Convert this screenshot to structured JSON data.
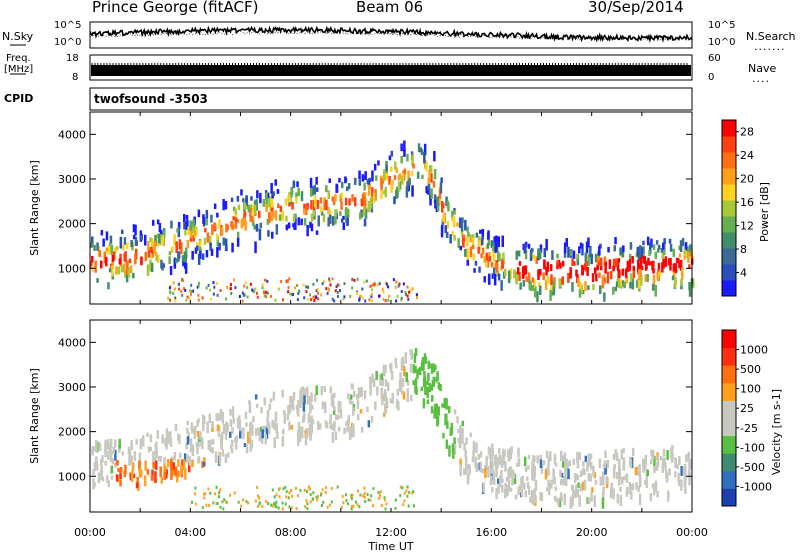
{
  "header": {
    "station": "Prince George (fitACF)",
    "beam": "Beam 06",
    "date": "30/Sep/2014"
  },
  "noise_panel": {
    "left_label": "N.Sky",
    "right_label": "N.Search",
    "right_dots": ".......",
    "left_ticks": [
      "10^5",
      "10^0"
    ],
    "right_ticks": [
      "10^5",
      "10^0"
    ]
  },
  "freq_panel": {
    "left_label_1": "Freq.",
    "left_label_2": "[MHz]",
    "right_label": "Nave",
    "right_dots": "....",
    "left_ticks": [
      "18",
      "8"
    ],
    "right_ticks": [
      "60",
      "0"
    ]
  },
  "cpid": {
    "label": "CPID",
    "value": "twofsound  -3503"
  },
  "chart_data": [
    {
      "type": "heatmap",
      "title": "",
      "xlabel": "",
      "ylabel": "Slant Range [km]",
      "x_range": [
        "00:00",
        "24:00"
      ],
      "ylim": [
        200,
        4500
      ],
      "y_ticks": [
        1000,
        2000,
        3000,
        4000
      ],
      "colorbar": {
        "label": "Power [dB]",
        "ticks": [
          4,
          8,
          12,
          16,
          20,
          24,
          28
        ],
        "range": [
          0,
          30
        ],
        "colors": [
          "#1a1aff",
          "#2a4fbd",
          "#3a6a95",
          "#3f8f6a",
          "#66b050",
          "#a8c838",
          "#ffd21e",
          "#ffa01a",
          "#ff7016",
          "#ff4010",
          "#ff0000"
        ]
      },
      "echo_bands_km": [
        {
          "x": [
            0.0,
            1.0,
            2.0,
            3.0,
            4.0,
            5.0,
            6.0,
            7.0,
            8.0,
            9.0,
            10.0,
            11.0
          ],
          "y": [
            1300,
            1350,
            1400,
            1550,
            1750,
            1950,
            2200,
            2350,
            2450,
            2500,
            2550,
            2600
          ]
        },
        {
          "x": [
            11.0,
            12.0,
            13.0,
            13.7,
            14.2,
            15.0,
            16.0,
            17.0,
            18.0,
            20.0,
            22.0,
            24.0
          ],
          "y": [
            2700,
            3100,
            3450,
            3000,
            2200,
            1600,
            1250,
            1100,
            1050,
            1050,
            1150,
            1250
          ]
        }
      ]
    },
    {
      "type": "heatmap",
      "title": "",
      "xlabel": "Time UT",
      "ylabel": "Slant Range [km]",
      "x_range": [
        "00:00",
        "24:00"
      ],
      "x_ticks": [
        "00:00",
        "04:00",
        "08:00",
        "12:00",
        "16:00",
        "20:00",
        "00:00"
      ],
      "ylim": [
        200,
        4500
      ],
      "y_ticks": [
        1000,
        2000,
        3000,
        4000
      ],
      "colorbar": {
        "label": "Velocity [m s-1]",
        "ticks": [
          "1000",
          "500",
          "100",
          "25",
          "-25",
          "-100",
          "-500",
          "-1000"
        ],
        "range": [
          -1000,
          1000
        ],
        "colors": [
          "#1c3fb0",
          "#2e6fbf",
          "#3c8c70",
          "#58c040",
          "#c8c8c0",
          "#c8c8c0",
          "#ffa020",
          "#ff7010",
          "#ff3010",
          "#ff0000"
        ]
      }
    }
  ]
}
